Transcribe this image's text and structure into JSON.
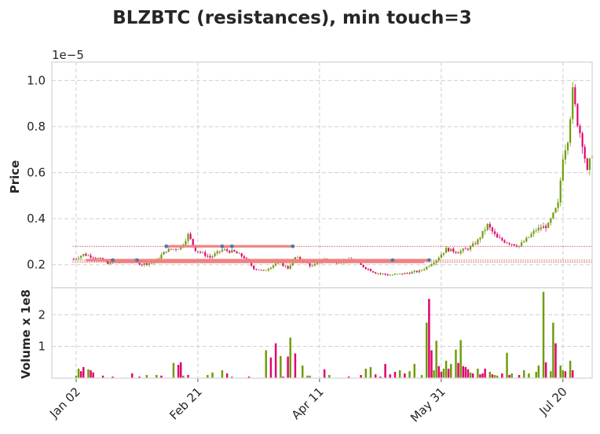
{
  "chart_data": {
    "type": "candlestick",
    "title": "BLZBTC (resistances), min touch=3",
    "price_panel": {
      "ylabel": "Price",
      "offset_label": "1e−5",
      "yticks": [
        0.2,
        0.4,
        0.6,
        0.8,
        1.0
      ],
      "ytick_labels": [
        "0.2",
        "0.4",
        "0.6",
        "0.8",
        "1.0"
      ],
      "ylim": [
        0.1,
        1.08
      ],
      "grid": true
    },
    "volume_panel": {
      "ylabel": "Volume x 1e8",
      "yticks": [
        1,
        2
      ],
      "ytick_labels": [
        "1",
        "2"
      ],
      "ylim": [
        0,
        2.85
      ],
      "grid": true
    },
    "xaxis": {
      "ticks": [
        1,
        51,
        101,
        151,
        201
      ],
      "tick_labels": [
        "Jan 02",
        "Feb 21",
        "Apr 11",
        "May 31",
        "Jul 20"
      ],
      "xlim": [
        -9,
        213
      ]
    },
    "colors": {
      "up": "#6f9c0b",
      "down": "#e0046c",
      "resistance": "#f08080",
      "touch": "#4c78b0"
    },
    "resistance_levels": [
      {
        "level": 0.28,
        "segments": [
          [
            38,
            90
          ]
        ],
        "touches": [
          38,
          61,
          65,
          90
        ]
      },
      {
        "level": 0.22,
        "segments": [
          [
            5,
            146
          ]
        ],
        "touches": [
          16,
          26,
          131,
          146
        ]
      },
      {
        "level": 0.212,
        "segments": [
          [
            15,
            144
          ]
        ],
        "touches": []
      }
    ],
    "dotted_levels": [
      0.28,
      0.22,
      0.212
    ],
    "waypoints": [
      [
        0,
        0.225
      ],
      [
        4,
        0.245
      ],
      [
        9,
        0.232
      ],
      [
        14,
        0.208
      ],
      [
        19,
        0.212
      ],
      [
        24,
        0.218
      ],
      [
        28,
        0.202
      ],
      [
        33,
        0.21
      ],
      [
        38,
        0.262
      ],
      [
        44,
        0.275
      ],
      [
        47,
        0.33
      ],
      [
        50,
        0.265
      ],
      [
        56,
        0.232
      ],
      [
        61,
        0.265
      ],
      [
        66,
        0.255
      ],
      [
        70,
        0.232
      ],
      [
        74,
        0.185
      ],
      [
        78,
        0.172
      ],
      [
        84,
        0.212
      ],
      [
        88,
        0.185
      ],
      [
        91,
        0.232
      ],
      [
        94,
        0.218
      ],
      [
        98,
        0.192
      ],
      [
        103,
        0.225
      ],
      [
        108,
        0.212
      ],
      [
        114,
        0.22
      ],
      [
        119,
        0.192
      ],
      [
        124,
        0.165
      ],
      [
        130,
        0.155
      ],
      [
        136,
        0.162
      ],
      [
        142,
        0.172
      ],
      [
        145,
        0.19
      ],
      [
        149,
        0.222
      ],
      [
        153,
        0.268
      ],
      [
        158,
        0.255
      ],
      [
        163,
        0.275
      ],
      [
        166,
        0.305
      ],
      [
        170,
        0.372
      ],
      [
        174,
        0.315
      ],
      [
        178,
        0.298
      ],
      [
        183,
        0.282
      ],
      [
        186,
        0.31
      ],
      [
        190,
        0.352
      ],
      [
        195,
        0.372
      ],
      [
        199,
        0.462
      ],
      [
        201,
        0.672
      ],
      [
        203,
        0.75
      ],
      [
        205,
        0.95
      ],
      [
        207,
        0.82
      ],
      [
        209,
        0.732
      ],
      [
        211,
        0.6
      ],
      [
        213,
        0.69
      ]
    ],
    "volume_bars": [
      [
        1,
        0.08,
        "up"
      ],
      [
        2,
        0.3,
        "up"
      ],
      [
        3,
        0.22,
        "down"
      ],
      [
        4,
        0.35,
        "down"
      ],
      [
        6,
        0.28,
        "up"
      ],
      [
        7,
        0.25,
        "down"
      ],
      [
        8,
        0.18,
        "down"
      ],
      [
        12,
        0.08,
        "down"
      ],
      [
        16,
        0.05,
        "down"
      ],
      [
        24,
        0.15,
        "down"
      ],
      [
        27,
        0.05,
        "down"
      ],
      [
        30,
        0.1,
        "up"
      ],
      [
        34,
        0.1,
        "up"
      ],
      [
        36,
        0.08,
        "down"
      ],
      [
        41,
        0.48,
        "up"
      ],
      [
        43,
        0.42,
        "down"
      ],
      [
        44,
        0.5,
        "down"
      ],
      [
        45,
        0.08,
        "up"
      ],
      [
        47,
        0.1,
        "down"
      ],
      [
        55,
        0.1,
        "up"
      ],
      [
        57,
        0.18,
        "up"
      ],
      [
        61,
        0.25,
        "up"
      ],
      [
        63,
        0.15,
        "down"
      ],
      [
        65,
        0.05,
        "up"
      ],
      [
        72,
        0.05,
        "down"
      ],
      [
        79,
        0.88,
        "up"
      ],
      [
        81,
        0.65,
        "down"
      ],
      [
        83,
        1.1,
        "down"
      ],
      [
        85,
        0.7,
        "up"
      ],
      [
        86,
        0.05,
        "down"
      ],
      [
        88,
        0.68,
        "down"
      ],
      [
        89,
        1.28,
        "up"
      ],
      [
        91,
        0.78,
        "down"
      ],
      [
        94,
        0.4,
        "up"
      ],
      [
        96,
        0.08,
        "up"
      ],
      [
        97,
        0.08,
        "up"
      ],
      [
        103,
        0.28,
        "down"
      ],
      [
        105,
        0.1,
        "up"
      ],
      [
        113,
        0.05,
        "down"
      ],
      [
        118,
        0.1,
        "down"
      ],
      [
        120,
        0.3,
        "up"
      ],
      [
        122,
        0.35,
        "up"
      ],
      [
        124,
        0.12,
        "down"
      ],
      [
        126,
        0.05,
        "down"
      ],
      [
        128,
        0.45,
        "down"
      ],
      [
        130,
        0.12,
        "down"
      ],
      [
        132,
        0.2,
        "down"
      ],
      [
        134,
        0.25,
        "up"
      ],
      [
        136,
        0.15,
        "down"
      ],
      [
        138,
        0.22,
        "up"
      ],
      [
        140,
        0.45,
        "up"
      ],
      [
        143,
        0.1,
        "up"
      ],
      [
        145,
        1.75,
        "up"
      ],
      [
        146,
        2.5,
        "down"
      ],
      [
        147,
        0.88,
        "down"
      ],
      [
        148,
        0.25,
        "up"
      ],
      [
        149,
        1.18,
        "up"
      ],
      [
        150,
        0.38,
        "down"
      ],
      [
        151,
        0.2,
        "down"
      ],
      [
        152,
        0.3,
        "up"
      ],
      [
        153,
        0.55,
        "up"
      ],
      [
        154,
        0.3,
        "down"
      ],
      [
        155,
        0.45,
        "up"
      ],
      [
        157,
        0.9,
        "up"
      ],
      [
        158,
        0.48,
        "down"
      ],
      [
        159,
        1.2,
        "up"
      ],
      [
        160,
        0.38,
        "down"
      ],
      [
        161,
        0.35,
        "down"
      ],
      [
        162,
        0.28,
        "down"
      ],
      [
        163,
        0.18,
        "up"
      ],
      [
        164,
        0.15,
        "down"
      ],
      [
        166,
        0.3,
        "up"
      ],
      [
        167,
        0.12,
        "down"
      ],
      [
        168,
        0.15,
        "down"
      ],
      [
        169,
        0.3,
        "down"
      ],
      [
        171,
        0.2,
        "up"
      ],
      [
        172,
        0.12,
        "down"
      ],
      [
        173,
        0.1,
        "up"
      ],
      [
        174,
        0.08,
        "up"
      ],
      [
        176,
        0.15,
        "down"
      ],
      [
        178,
        0.8,
        "up"
      ],
      [
        179,
        0.1,
        "down"
      ],
      [
        180,
        0.15,
        "up"
      ],
      [
        183,
        0.1,
        "down"
      ],
      [
        185,
        0.25,
        "up"
      ],
      [
        187,
        0.15,
        "up"
      ],
      [
        190,
        0.2,
        "up"
      ],
      [
        191,
        0.4,
        "up"
      ],
      [
        193,
        2.72,
        "up"
      ],
      [
        194,
        0.5,
        "down"
      ],
      [
        196,
        0.22,
        "up"
      ],
      [
        197,
        1.75,
        "up"
      ],
      [
        198,
        1.1,
        "down"
      ],
      [
        200,
        0.4,
        "up"
      ],
      [
        201,
        0.25,
        "up"
      ],
      [
        202,
        0.22,
        "down"
      ],
      [
        204,
        0.55,
        "up"
      ],
      [
        205,
        0.25,
        "down"
      ]
    ]
  }
}
